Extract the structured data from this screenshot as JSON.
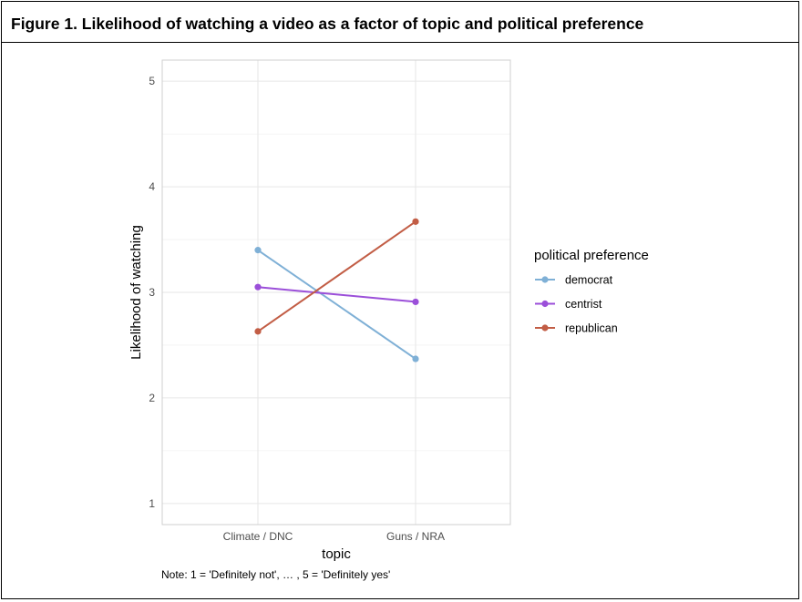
{
  "figure": {
    "title": "Figure 1. Likelihood of watching a video as a factor of topic and political preference",
    "note": "Note: 1 = 'Definitely not', … , 5 = 'Definitely yes'"
  },
  "chart_data": {
    "type": "line",
    "title": "",
    "xlabel": "topic",
    "ylabel": "Likelihood of watching",
    "categories": [
      "Climate / DNC",
      "Guns / NRA"
    ],
    "ylim": [
      0.8,
      5.2
    ],
    "yticks": [
      1,
      2,
      3,
      4,
      5
    ],
    "grid": true,
    "legend": {
      "title": "political preference",
      "placement": "right"
    },
    "series": [
      {
        "name": "democrat",
        "values": [
          3.4,
          2.37
        ],
        "color": "#7fb0d6"
      },
      {
        "name": "centrist",
        "values": [
          3.05,
          2.91
        ],
        "color": "#9b4fd9"
      },
      {
        "name": "republican",
        "values": [
          2.63,
          3.67
        ],
        "color": "#c25d45"
      }
    ]
  }
}
